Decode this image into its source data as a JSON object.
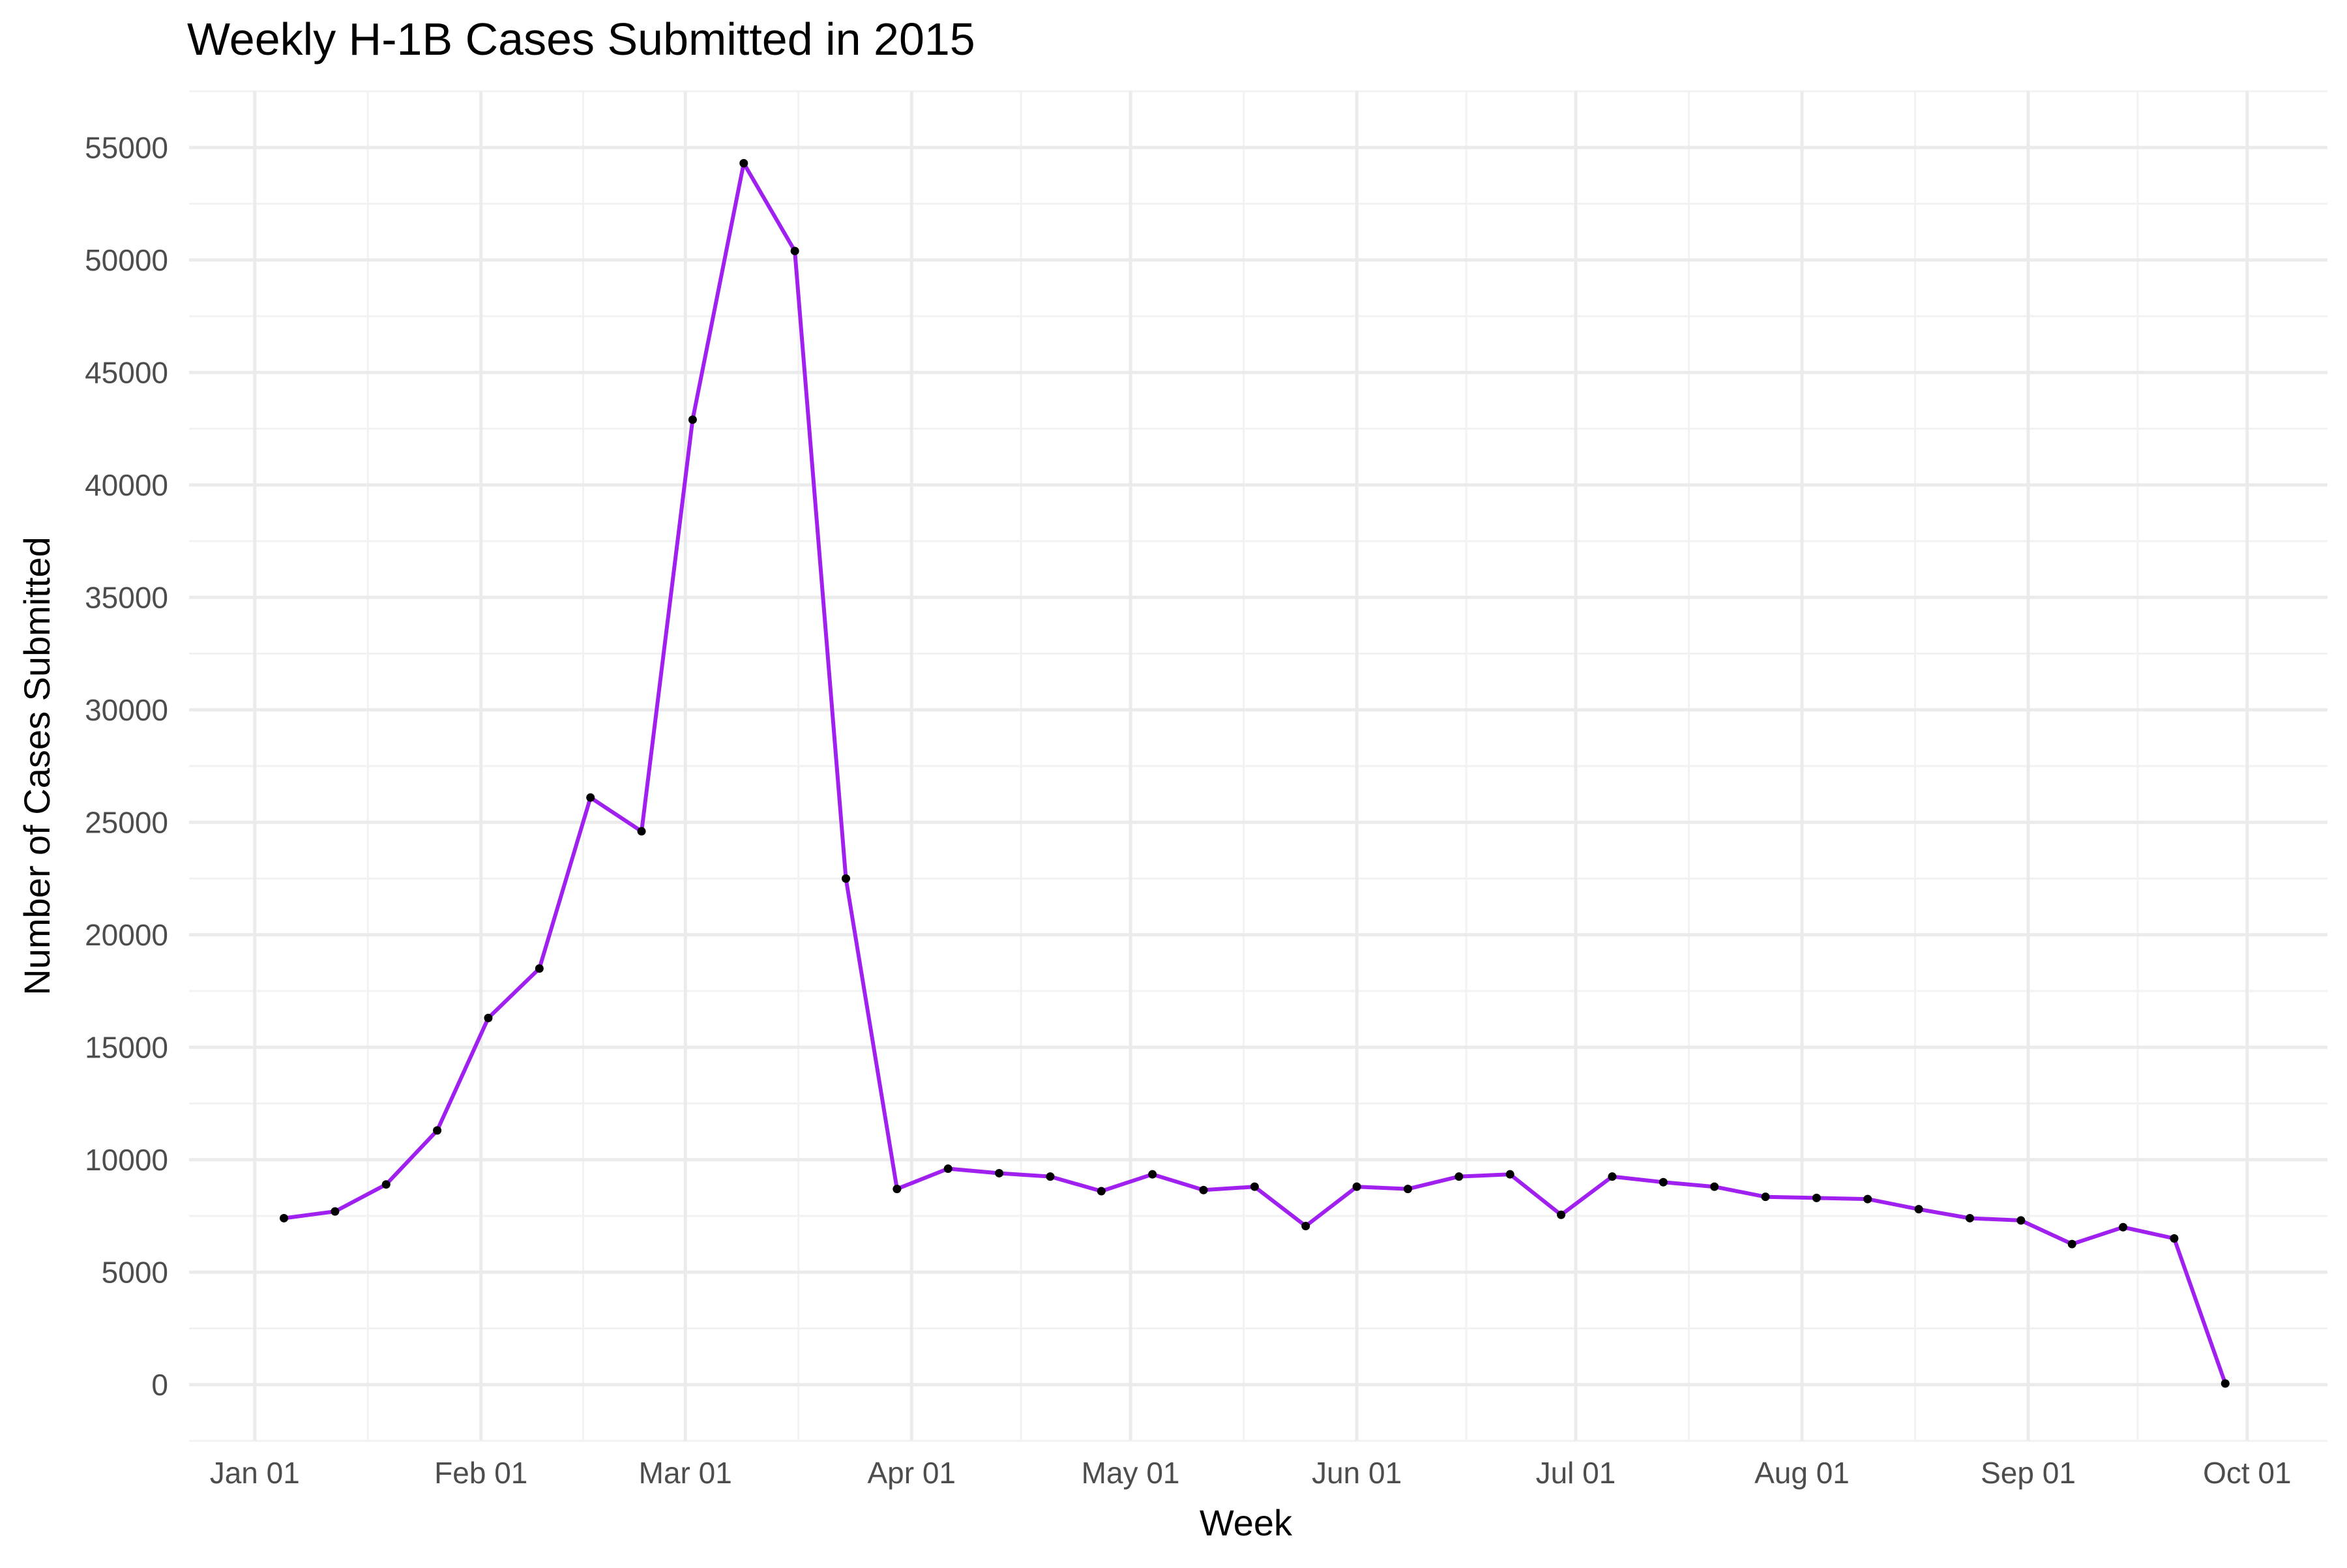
{
  "chart_data": {
    "type": "line",
    "title": "Weekly H-1B Cases Submitted in 2015",
    "xlabel": "Week",
    "ylabel": "Number of Cases Submitted",
    "line_color": "#a020f0",
    "point_color": "#000000",
    "grid": true,
    "legend": "none",
    "xlim": [
      "2014-12-23",
      "2015-10-12"
    ],
    "ylim": [
      -2500,
      57500
    ],
    "x_ticks": [
      {
        "date": "2015-01-01",
        "label": "Jan 01"
      },
      {
        "date": "2015-02-01",
        "label": "Feb 01"
      },
      {
        "date": "2015-03-01",
        "label": "Mar 01"
      },
      {
        "date": "2015-04-01",
        "label": "Apr 01"
      },
      {
        "date": "2015-05-01",
        "label": "May 01"
      },
      {
        "date": "2015-06-01",
        "label": "Jun 01"
      },
      {
        "date": "2015-07-01",
        "label": "Jul 01"
      },
      {
        "date": "2015-08-01",
        "label": "Aug 01"
      },
      {
        "date": "2015-09-01",
        "label": "Sep 01"
      },
      {
        "date": "2015-10-01",
        "label": "Oct 01"
      }
    ],
    "y_ticks": [
      0,
      5000,
      10000,
      15000,
      20000,
      25000,
      30000,
      35000,
      40000,
      45000,
      50000,
      55000
    ],
    "x": [
      "2015-01-05",
      "2015-01-12",
      "2015-01-19",
      "2015-01-26",
      "2015-02-02",
      "2015-02-09",
      "2015-02-16",
      "2015-02-23",
      "2015-03-02",
      "2015-03-09",
      "2015-03-16",
      "2015-03-23",
      "2015-03-30",
      "2015-04-06",
      "2015-04-13",
      "2015-04-20",
      "2015-04-27",
      "2015-05-04",
      "2015-05-11",
      "2015-05-18",
      "2015-05-25",
      "2015-06-01",
      "2015-06-08",
      "2015-06-15",
      "2015-06-22",
      "2015-06-29",
      "2015-07-06",
      "2015-07-13",
      "2015-07-20",
      "2015-07-27",
      "2015-08-03",
      "2015-08-10",
      "2015-08-17",
      "2015-08-24",
      "2015-08-31",
      "2015-09-07",
      "2015-09-14",
      "2015-09-21",
      "2015-09-28"
    ],
    "values": [
      7400,
      7700,
      8900,
      11300,
      16300,
      18500,
      26100,
      24600,
      42900,
      54300,
      50400,
      22500,
      8700,
      9600,
      9400,
      9250,
      8600,
      9350,
      8650,
      8800,
      7050,
      8800,
      8700,
      9250,
      9350,
      7550,
      9250,
      9000,
      8800,
      8350,
      8300,
      8250,
      7800,
      7400,
      7300,
      6250,
      7000,
      6500,
      50
    ]
  }
}
